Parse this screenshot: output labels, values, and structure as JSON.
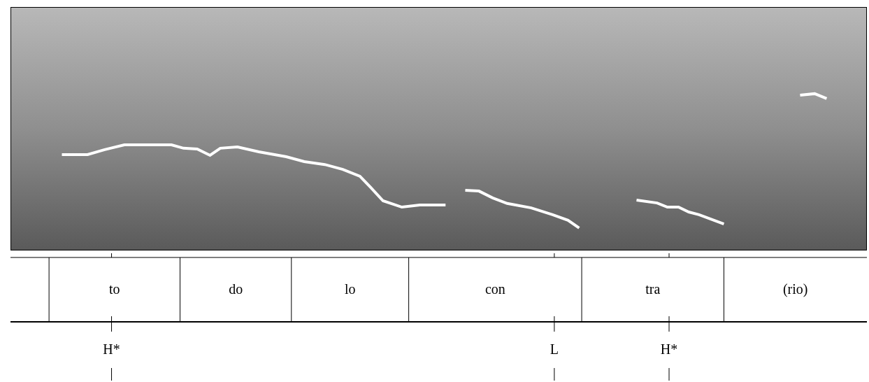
{
  "chart_data": {
    "type": "line",
    "x": [
      6.0,
      9.0,
      11.0,
      13.3,
      18.8,
      20.2,
      21.8,
      23.3,
      24.5,
      26.5,
      29.0,
      32.2,
      34.3,
      36.7,
      38.8,
      40.8,
      42.0,
      43.5,
      45.7,
      47.8,
      50.8,
      52.0,
      53.1,
      54.7,
      56.3,
      58.0,
      60.8,
      63.3,
      65.1,
      66.4,
      70.0,
      73.1,
      75.5,
      76.7,
      78.0,
      79.2,
      80.4,
      83.3,
      88.0,
      92.2,
      93.9,
      95.3
    ],
    "values": [
      39.4,
      39.4,
      41.4,
      43.4,
      43.4,
      42.0,
      41.7,
      39.1,
      42.0,
      42.5,
      40.5,
      38.5,
      36.5,
      35.3,
      33.3,
      30.5,
      26.1,
      20.4,
      17.8,
      18.7,
      18.7,
      null,
      24.7,
      24.4,
      21.6,
      19.3,
      17.5,
      14.7,
      12.4,
      9.2,
      null,
      20.7,
      19.5,
      17.8,
      17.8,
      15.8,
      14.7,
      10.9,
      null,
      63.8,
      64.4,
      62.4
    ],
    "color": "#ffffff",
    "xlim": [
      0,
      100
    ],
    "ylim": [
      0,
      100
    ],
    "grid": false,
    "tick_labels": false,
    "intervals": [
      {
        "label": "to",
        "start": 4.5,
        "end": 19.8
      },
      {
        "label": "do",
        "start": 19.8,
        "end": 32.8
      },
      {
        "label": "lo",
        "start": 32.8,
        "end": 46.5
      },
      {
        "label": "con",
        "start": 46.5,
        "end": 66.7
      },
      {
        "label": "tra",
        "start": 66.7,
        "end": 83.3
      },
      {
        "label": "(rio)",
        "start": 83.3,
        "end": 100
      }
    ],
    "points": [
      {
        "label": "H*",
        "x": 11.8
      },
      {
        "label": "L",
        "x": 63.5
      },
      {
        "label": "H*",
        "x": 76.9
      }
    ]
  }
}
